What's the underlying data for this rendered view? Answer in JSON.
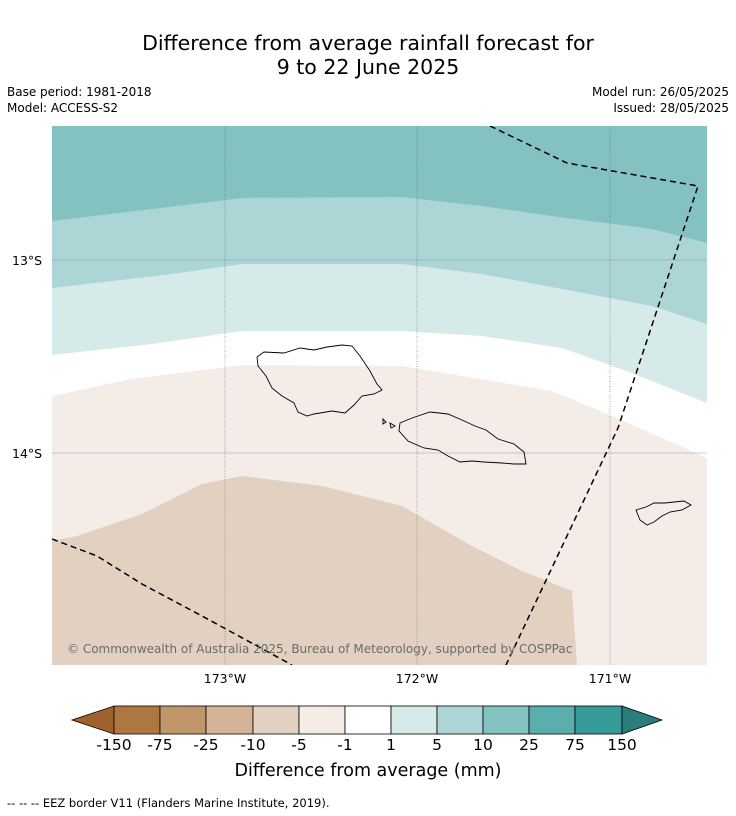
{
  "title": {
    "line1": "Difference from average rainfall forecast for",
    "line2": "9 to 22 June 2025"
  },
  "info": {
    "base_period": "Base period: 1981-2018",
    "model": "Model: ACCESS-S2",
    "model_run": "Model run: 26/05/2025",
    "issued": "Issued: 28/05/2025"
  },
  "map": {
    "longitude_ticks": [
      "173°W",
      "172°W",
      "171°W"
    ],
    "latitude_ticks": [
      "13°S",
      "14°S"
    ],
    "copyright": "© Commonwealth of Australia 2025, Bureau of Meteorology, supported by COSPPac",
    "colors": {
      "band_10_25": "#84c1c1",
      "band_5_10": "#acd5d5",
      "band_1_5": "#d6eae9",
      "band_m1_1": "#ffffff",
      "band_m5_m1": "#f4ece7",
      "band_m10_m5": "#e2d1c1",
      "coastline": "#000000",
      "eez_border": "#000000"
    }
  },
  "colorbar": {
    "ticks": [
      "-150",
      "-75",
      "-25",
      "-10",
      "-5",
      "-1",
      "1",
      "5",
      "10",
      "25",
      "75",
      "150"
    ],
    "colors": [
      "#a0622d",
      "#af7740",
      "#c1966a",
      "#d4b396",
      "#e2d1c1",
      "#f4ece7",
      "#ffffff",
      "#d6eae9",
      "#acd5d5",
      "#84c1c1",
      "#5aaeae",
      "#359a98",
      "#2a7d7b"
    ],
    "label": "Difference from average (mm)"
  },
  "footnote": "--  --  -- EEZ border V11 (Flanders Marine Institute, 2019)."
}
